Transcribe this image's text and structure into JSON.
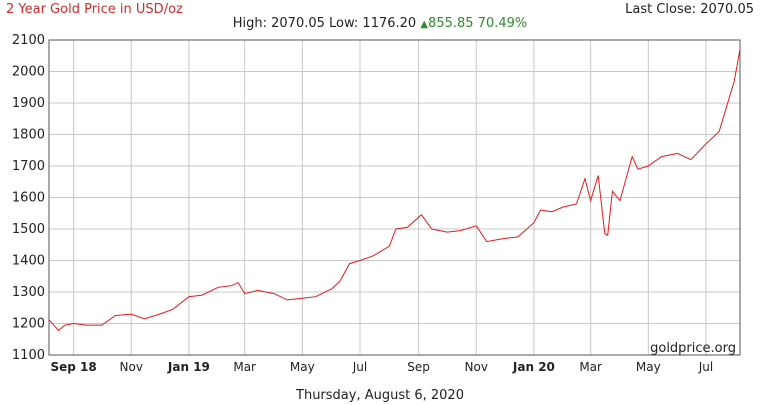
{
  "header": {
    "title": "2 Year Gold Price in USD/oz",
    "last_close": "Last Close: 2070.05",
    "high_label": "High: 2070.05",
    "low_label": "Low: 1176.20",
    "change_icon": "up-triangle-icon",
    "change_label": "855.85 70.49%"
  },
  "footer": {
    "date": "Thursday, August 6, 2020"
  },
  "brand": "goldprice.org",
  "colors": {
    "line": "#e11b1b",
    "title": "#d22b2b",
    "change": "#2e8b2e",
    "grid": "#c8c8c8",
    "axis": "#555555"
  },
  "chart_data": {
    "type": "line",
    "title": "2 Year Gold Price in USD/oz",
    "ylim": [
      1100,
      2100
    ],
    "y_ticks": [
      1100,
      1200,
      1300,
      1400,
      1500,
      1600,
      1700,
      1800,
      1900,
      2000,
      2100
    ],
    "xlim": [
      "2018-08-06",
      "2020-08-06"
    ],
    "x_ticks": [
      {
        "date": "2018-09-01",
        "label": "Sep 18",
        "bold": true
      },
      {
        "date": "2018-11-01",
        "label": "Nov",
        "bold": false
      },
      {
        "date": "2019-01-01",
        "label": "Jan 19",
        "bold": true
      },
      {
        "date": "2019-03-01",
        "label": "Mar",
        "bold": false
      },
      {
        "date": "2019-05-01",
        "label": "May",
        "bold": false
      },
      {
        "date": "2019-07-01",
        "label": "Jul",
        "bold": false
      },
      {
        "date": "2019-09-01",
        "label": "Sep",
        "bold": false
      },
      {
        "date": "2019-11-01",
        "label": "Nov",
        "bold": false
      },
      {
        "date": "2020-01-01",
        "label": "Jan 20",
        "bold": true
      },
      {
        "date": "2020-03-01",
        "label": "Mar",
        "bold": false
      },
      {
        "date": "2020-05-01",
        "label": "May",
        "bold": false
      },
      {
        "date": "2020-07-01",
        "label": "Jul",
        "bold": false
      }
    ],
    "grid": true,
    "series": [
      {
        "x": [
          "2018-08-06",
          "2018-08-16",
          "2018-08-23",
          "2018-09-01",
          "2018-09-15",
          "2018-10-01",
          "2018-10-15",
          "2018-11-01",
          "2018-11-15",
          "2018-12-01",
          "2018-12-15",
          "2019-01-01",
          "2019-01-15",
          "2019-02-01",
          "2019-02-15",
          "2019-02-22",
          "2019-03-01",
          "2019-03-15",
          "2019-04-01",
          "2019-04-15",
          "2019-05-01",
          "2019-05-15",
          "2019-06-01",
          "2019-06-10",
          "2019-06-20",
          "2019-07-01",
          "2019-07-15",
          "2019-08-01",
          "2019-08-08",
          "2019-08-20",
          "2019-09-04",
          "2019-09-15",
          "2019-10-01",
          "2019-10-15",
          "2019-11-01",
          "2019-11-12",
          "2019-12-01",
          "2019-12-15",
          "2020-01-01",
          "2020-01-08",
          "2020-01-20",
          "2020-02-01",
          "2020-02-15",
          "2020-02-24",
          "2020-03-01",
          "2020-03-09",
          "2020-03-16",
          "2020-03-19",
          "2020-03-24",
          "2020-04-01",
          "2020-04-14",
          "2020-04-20",
          "2020-05-01",
          "2020-05-15",
          "2020-06-01",
          "2020-06-15",
          "2020-07-01",
          "2020-07-15",
          "2020-07-24",
          "2020-07-31",
          "2020-08-06"
        ],
        "y": [
          1212,
          1178,
          1195,
          1200,
          1195,
          1195,
          1225,
          1230,
          1215,
          1230,
          1245,
          1285,
          1290,
          1315,
          1320,
          1330,
          1295,
          1305,
          1295,
          1275,
          1280,
          1285,
          1310,
          1335,
          1390,
          1400,
          1415,
          1445,
          1500,
          1505,
          1545,
          1500,
          1490,
          1495,
          1510,
          1460,
          1470,
          1475,
          1520,
          1560,
          1555,
          1570,
          1580,
          1660,
          1590,
          1670,
          1485,
          1480,
          1620,
          1590,
          1730,
          1690,
          1700,
          1730,
          1740,
          1720,
          1770,
          1810,
          1900,
          1970,
          2070
        ]
      }
    ]
  }
}
